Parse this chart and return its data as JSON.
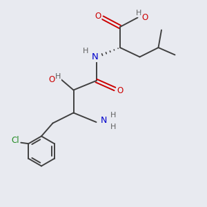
{
  "bg_color": "#e8eaf0",
  "atom_colors": {
    "C": "#404040",
    "O": "#cc0000",
    "N": "#0000cc",
    "H": "#606060",
    "Cl": "#228B22"
  },
  "bond_color": "#404040"
}
